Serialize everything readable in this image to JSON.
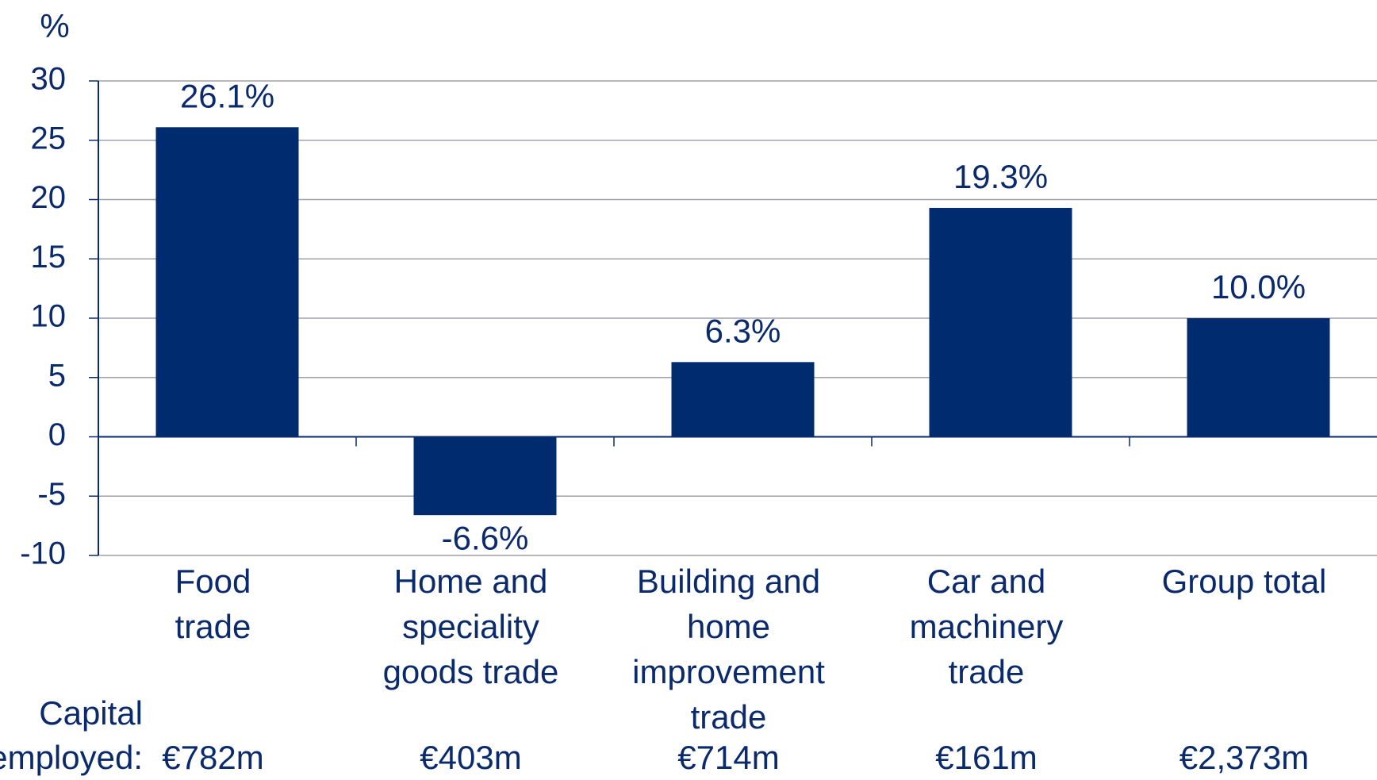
{
  "chart_data": {
    "type": "bar",
    "y_axis_label": "%",
    "categories": [
      "Food\ntrade",
      "Home and\nspeciality\ngoods trade",
      "Building and\nhome\nimprovement\ntrade",
      "Car and\nmachinery\ntrade",
      "Group total"
    ],
    "values": [
      26.1,
      -6.6,
      6.3,
      19.3,
      10.0
    ],
    "value_labels": [
      "26.1%",
      "-6.6%",
      "6.3%",
      "19.3%",
      "10.0%"
    ],
    "color": "#002b6f",
    "ylim": [
      -10,
      30
    ],
    "yticks": [
      -10,
      -5,
      0,
      5,
      10,
      15,
      20,
      25,
      30
    ],
    "grid": true,
    "capital_employed_label": "Capital\nemployed:",
    "capital_employed": [
      "€782m",
      "€403m",
      "€714m",
      "€161m",
      "€2,373m"
    ]
  }
}
